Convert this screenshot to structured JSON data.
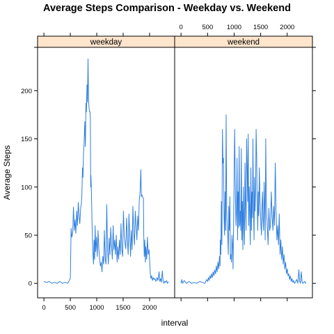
{
  "chart_data": {
    "type": "line",
    "title": "Average Steps Comparison - Weekday vs. Weekend",
    "xlabel": "interval",
    "ylabel": "Average Steps",
    "xlim": [
      -120,
      2475
    ],
    "ylim": [
      -15,
      245
    ],
    "x_ticks": [
      0,
      500,
      1000,
      1500,
      2000
    ],
    "y_ticks": [
      0,
      50,
      100,
      150,
      200
    ],
    "x_tick_labels": [
      "0",
      "500",
      "1000",
      "1500",
      "2000"
    ],
    "y_tick_labels": [
      "0",
      "50",
      "100",
      "150",
      "200"
    ],
    "line_color": "#2f7fe0",
    "strip_color": "#ffe5cc",
    "panels": [
      {
        "name": "weekday",
        "points": [
          [
            0,
            2
          ],
          [
            50,
            1
          ],
          [
            100,
            2
          ],
          [
            150,
            0
          ],
          [
            200,
            1
          ],
          [
            250,
            0
          ],
          [
            300,
            2
          ],
          [
            350,
            0
          ],
          [
            400,
            1
          ],
          [
            450,
            0
          ],
          [
            480,
            3
          ],
          [
            500,
            5
          ],
          [
            515,
            57
          ],
          [
            530,
            48
          ],
          [
            545,
            53
          ],
          [
            560,
            79
          ],
          [
            575,
            55
          ],
          [
            590,
            66
          ],
          [
            605,
            52
          ],
          [
            620,
            75
          ],
          [
            635,
            60
          ],
          [
            650,
            84
          ],
          [
            665,
            70
          ],
          [
            680,
            62
          ],
          [
            695,
            78
          ],
          [
            710,
            83
          ],
          [
            720,
            95
          ],
          [
            730,
            120
          ],
          [
            740,
            110
          ],
          [
            750,
            135
          ],
          [
            760,
            145
          ],
          [
            775,
            168
          ],
          [
            785,
            142
          ],
          [
            795,
            187
          ],
          [
            805,
            178
          ],
          [
            815,
            206
          ],
          [
            825,
            188
          ],
          [
            835,
            233
          ],
          [
            845,
            190
          ],
          [
            855,
            182
          ],
          [
            865,
            178
          ],
          [
            875,
            178
          ],
          [
            880,
            168
          ],
          [
            885,
            100
          ],
          [
            890,
            112
          ],
          [
            900,
            95
          ],
          [
            910,
            65
          ],
          [
            920,
            42
          ],
          [
            930,
            28
          ],
          [
            940,
            20
          ],
          [
            950,
            45
          ],
          [
            960,
            25
          ],
          [
            970,
            60
          ],
          [
            980,
            33
          ],
          [
            995,
            48
          ],
          [
            1010,
            28
          ],
          [
            1025,
            55
          ],
          [
            1040,
            36
          ],
          [
            1055,
            25
          ],
          [
            1070,
            18
          ],
          [
            1085,
            22
          ],
          [
            1100,
            12
          ],
          [
            1115,
            28
          ],
          [
            1130,
            20
          ],
          [
            1145,
            55
          ],
          [
            1160,
            25
          ],
          [
            1175,
            20
          ],
          [
            1190,
            82
          ],
          [
            1205,
            35
          ],
          [
            1220,
            20
          ],
          [
            1235,
            47
          ],
          [
            1250,
            30
          ],
          [
            1265,
            58
          ],
          [
            1280,
            40
          ],
          [
            1295,
            25
          ],
          [
            1310,
            60
          ],
          [
            1325,
            35
          ],
          [
            1340,
            45
          ],
          [
            1355,
            30
          ],
          [
            1370,
            50
          ],
          [
            1385,
            22
          ],
          [
            1400,
            38
          ],
          [
            1415,
            25
          ],
          [
            1430,
            45
          ],
          [
            1445,
            30
          ],
          [
            1460,
            62
          ],
          [
            1475,
            35
          ],
          [
            1490,
            28
          ],
          [
            1505,
            75
          ],
          [
            1520,
            50
          ],
          [
            1535,
            42
          ],
          [
            1550,
            36
          ],
          [
            1565,
            68
          ],
          [
            1580,
            45
          ],
          [
            1595,
            30
          ],
          [
            1610,
            72
          ],
          [
            1625,
            50
          ],
          [
            1640,
            28
          ],
          [
            1655,
            55
          ],
          [
            1670,
            35
          ],
          [
            1685,
            80
          ],
          [
            1700,
            52
          ],
          [
            1715,
            40
          ],
          [
            1730,
            75
          ],
          [
            1745,
            60
          ],
          [
            1760,
            45
          ],
          [
            1775,
            70
          ],
          [
            1790,
            55
          ],
          [
            1805,
            85
          ],
          [
            1820,
            95
          ],
          [
            1835,
            118
          ],
          [
            1845,
            90
          ],
          [
            1855,
            92
          ],
          [
            1865,
            90
          ],
          [
            1875,
            89
          ],
          [
            1885,
            88
          ],
          [
            1890,
            50
          ],
          [
            1900,
            28
          ],
          [
            1910,
            45
          ],
          [
            1920,
            22
          ],
          [
            1930,
            38
          ],
          [
            1945,
            25
          ],
          [
            1960,
            48
          ],
          [
            1975,
            30
          ],
          [
            1990,
            35
          ],
          [
            2005,
            20
          ],
          [
            2015,
            10
          ],
          [
            2025,
            5
          ],
          [
            2040,
            8
          ],
          [
            2055,
            3
          ],
          [
            2070,
            6
          ],
          [
            2085,
            4
          ],
          [
            2100,
            5
          ],
          [
            2120,
            2
          ],
          [
            2140,
            6
          ],
          [
            2160,
            3
          ],
          [
            2180,
            12
          ],
          [
            2195,
            2
          ],
          [
            2210,
            5
          ],
          [
            2225,
            1
          ],
          [
            2240,
            13
          ],
          [
            2255,
            4
          ],
          [
            2270,
            0
          ],
          [
            2285,
            2
          ],
          [
            2300,
            1
          ],
          [
            2320,
            3
          ],
          [
            2340,
            0
          ],
          [
            2355,
            2
          ]
        ]
      },
      {
        "name": "weekend",
        "points": [
          [
            0,
            0
          ],
          [
            15,
            4
          ],
          [
            30,
            0
          ],
          [
            60,
            3
          ],
          [
            100,
            0
          ],
          [
            150,
            2
          ],
          [
            200,
            0
          ],
          [
            250,
            1
          ],
          [
            300,
            0
          ],
          [
            350,
            2
          ],
          [
            400,
            1
          ],
          [
            450,
            0
          ],
          [
            480,
            4
          ],
          [
            500,
            2
          ],
          [
            515,
            6
          ],
          [
            530,
            3
          ],
          [
            545,
            8
          ],
          [
            560,
            5
          ],
          [
            575,
            10
          ],
          [
            590,
            6
          ],
          [
            605,
            12
          ],
          [
            620,
            8
          ],
          [
            635,
            14
          ],
          [
            650,
            10
          ],
          [
            665,
            18
          ],
          [
            680,
            12
          ],
          [
            695,
            22
          ],
          [
            710,
            15
          ],
          [
            725,
            28
          ],
          [
            735,
            18
          ],
          [
            740,
            45
          ],
          [
            750,
            30
          ],
          [
            760,
            85
          ],
          [
            770,
            40
          ],
          [
            780,
            160
          ],
          [
            790,
            125
          ],
          [
            800,
            130
          ],
          [
            810,
            70
          ],
          [
            820,
            50
          ],
          [
            830,
            95
          ],
          [
            840,
            55
          ],
          [
            850,
            175
          ],
          [
            860,
            75
          ],
          [
            870,
            60
          ],
          [
            880,
            50
          ],
          [
            890,
            30
          ],
          [
            900,
            80
          ],
          [
            910,
            55
          ],
          [
            920,
            90
          ],
          [
            930,
            25
          ],
          [
            940,
            30
          ],
          [
            950,
            22
          ],
          [
            960,
            50
          ],
          [
            970,
            40
          ],
          [
            980,
            15
          ],
          [
            995,
            85
          ],
          [
            1010,
            160
          ],
          [
            1025,
            90
          ],
          [
            1035,
            60
          ],
          [
            1045,
            75
          ],
          [
            1055,
            130
          ],
          [
            1065,
            45
          ],
          [
            1075,
            95
          ],
          [
            1085,
            58
          ],
          [
            1095,
            142
          ],
          [
            1105,
            60
          ],
          [
            1115,
            75
          ],
          [
            1125,
            55
          ],
          [
            1135,
            140
          ],
          [
            1145,
            45
          ],
          [
            1155,
            85
          ],
          [
            1165,
            35
          ],
          [
            1175,
            100
          ],
          [
            1185,
            60
          ],
          [
            1195,
            40
          ],
          [
            1205,
            125
          ],
          [
            1215,
            78
          ],
          [
            1225,
            55
          ],
          [
            1235,
            150
          ],
          [
            1245,
            120
          ],
          [
            1255,
            85
          ],
          [
            1265,
            155
          ],
          [
            1275,
            60
          ],
          [
            1285,
            100
          ],
          [
            1295,
            70
          ],
          [
            1305,
            40
          ],
          [
            1315,
            120
          ],
          [
            1325,
            55
          ],
          [
            1335,
            95
          ],
          [
            1345,
            68
          ],
          [
            1355,
            150
          ],
          [
            1365,
            80
          ],
          [
            1375,
            45
          ],
          [
            1385,
            110
          ],
          [
            1395,
            75
          ],
          [
            1405,
            100
          ],
          [
            1415,
            160
          ],
          [
            1425,
            130
          ],
          [
            1435,
            85
          ],
          [
            1445,
            55
          ],
          [
            1455,
            95
          ],
          [
            1465,
            70
          ],
          [
            1475,
            120
          ],
          [
            1485,
            90
          ],
          [
            1495,
            75
          ],
          [
            1505,
            60
          ],
          [
            1515,
            50
          ],
          [
            1525,
            80
          ],
          [
            1535,
            95
          ],
          [
            1545,
            65
          ],
          [
            1555,
            55
          ],
          [
            1565,
            105
          ],
          [
            1575,
            85
          ],
          [
            1585,
            45
          ],
          [
            1595,
            150
          ],
          [
            1605,
            95
          ],
          [
            1615,
            70
          ],
          [
            1625,
            60
          ],
          [
            1640,
            40
          ],
          [
            1655,
            78
          ],
          [
            1670,
            55
          ],
          [
            1685,
            60
          ],
          [
            1700,
            95
          ],
          [
            1715,
            70
          ],
          [
            1730,
            55
          ],
          [
            1745,
            80
          ],
          [
            1760,
            60
          ],
          [
            1775,
            125
          ],
          [
            1790,
            75
          ],
          [
            1805,
            45
          ],
          [
            1820,
            60
          ],
          [
            1835,
            40
          ],
          [
            1850,
            72
          ],
          [
            1865,
            30
          ],
          [
            1880,
            45
          ],
          [
            1895,
            25
          ],
          [
            1910,
            38
          ],
          [
            1925,
            20
          ],
          [
            1940,
            30
          ],
          [
            1955,
            15
          ],
          [
            1970,
            22
          ],
          [
            1985,
            10
          ],
          [
            2000,
            15
          ],
          [
            2015,
            8
          ],
          [
            2030,
            10
          ],
          [
            2045,
            4
          ],
          [
            2060,
            8
          ],
          [
            2075,
            2
          ],
          [
            2090,
            5
          ],
          [
            2105,
            1
          ],
          [
            2120,
            3
          ],
          [
            2140,
            0
          ],
          [
            2160,
            2
          ],
          [
            2180,
            4
          ],
          [
            2200,
            0
          ],
          [
            2220,
            14
          ],
          [
            2235,
            2
          ],
          [
            2250,
            0
          ],
          [
            2265,
            12
          ],
          [
            2280,
            2
          ],
          [
            2295,
            0
          ],
          [
            2310,
            1
          ],
          [
            2330,
            2
          ],
          [
            2345,
            0
          ],
          [
            2355,
            1
          ]
        ]
      }
    ]
  }
}
